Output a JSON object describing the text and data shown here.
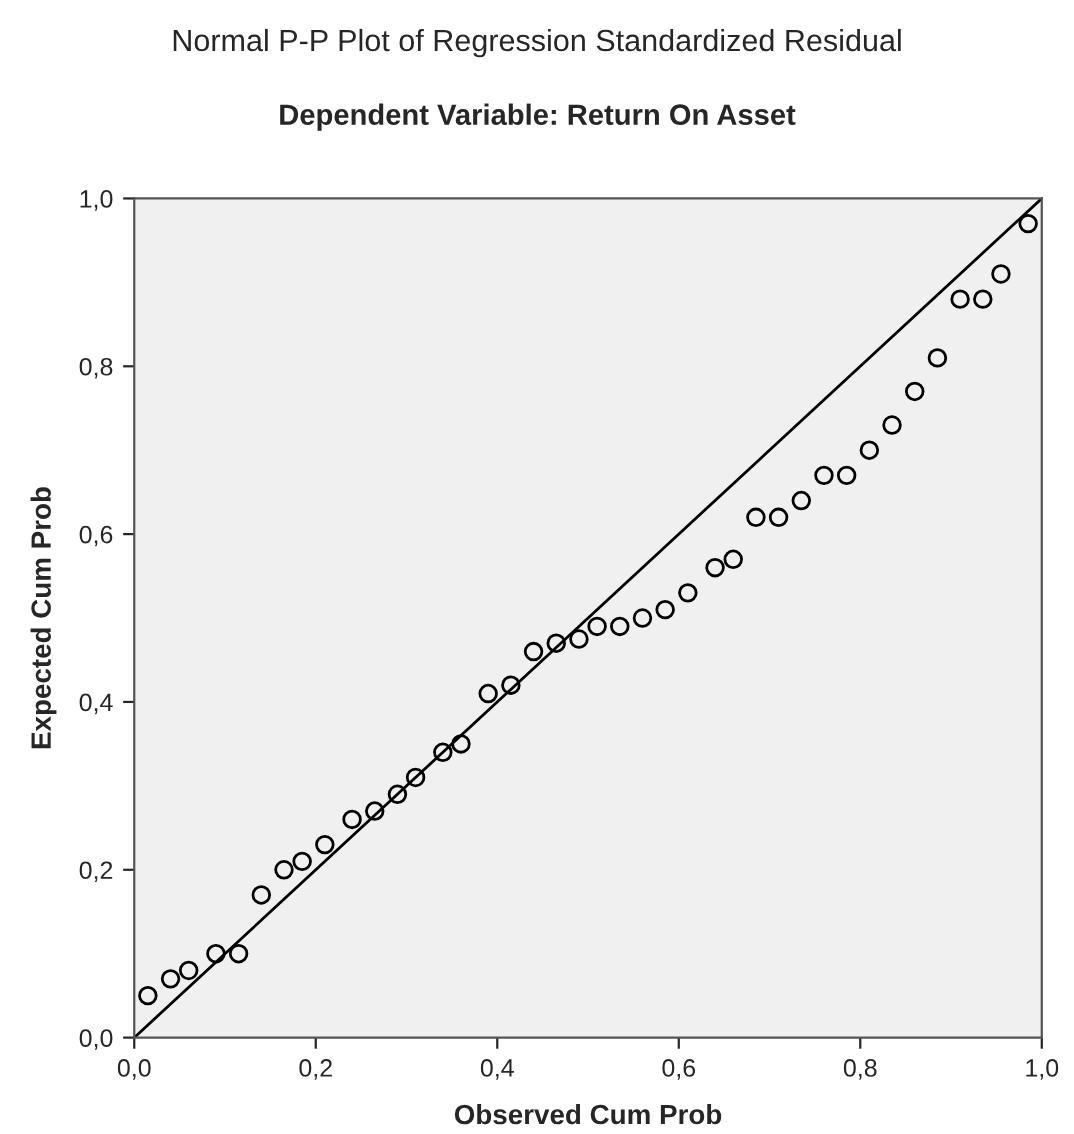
{
  "chart_data": {
    "type": "scatter",
    "title": "Normal P-P Plot of Regression Standardized Residual",
    "subtitle": "Dependent Variable: Return On Asset",
    "xlabel": "Observed Cum Prob",
    "ylabel": "Expected Cum Prob",
    "xlim": [
      0,
      1
    ],
    "ylim": [
      0,
      1
    ],
    "xticks": [
      {
        "value": 0,
        "label": "0,0"
      },
      {
        "value": 0.2,
        "label": "0,2"
      },
      {
        "value": 0.4,
        "label": "0,4"
      },
      {
        "value": 0.6,
        "label": "0,6"
      },
      {
        "value": 0.8,
        "label": "0,8"
      },
      {
        "value": 1,
        "label": "1,0"
      }
    ],
    "yticks": [
      {
        "value": 0,
        "label": "0,0"
      },
      {
        "value": 0.2,
        "label": "0,2"
      },
      {
        "value": 0.4,
        "label": "0,4"
      },
      {
        "value": 0.6,
        "label": "0,6"
      },
      {
        "value": 0.8,
        "label": "0,8"
      },
      {
        "value": 1,
        "label": "1,0"
      }
    ],
    "grid": false,
    "series": [
      {
        "marker": "circle",
        "color": "#000000",
        "x": [
          0.015,
          0.04,
          0.06,
          0.09,
          0.115,
          0.14,
          0.165,
          0.185,
          0.21,
          0.24,
          0.265,
          0.29,
          0.31,
          0.34,
          0.36,
          0.39,
          0.415,
          0.44,
          0.465,
          0.49,
          0.51,
          0.535,
          0.56,
          0.585,
          0.61,
          0.64,
          0.66,
          0.685,
          0.71,
          0.735,
          0.76,
          0.785,
          0.81,
          0.835,
          0.86,
          0.885,
          0.91,
          0.935,
          0.955,
          0.985
        ],
        "values": [
          0.05,
          0.07,
          0.08,
          0.1,
          0.1,
          0.17,
          0.2,
          0.21,
          0.23,
          0.26,
          0.27,
          0.29,
          0.31,
          0.34,
          0.35,
          0.41,
          0.42,
          0.46,
          0.47,
          0.475,
          0.49,
          0.49,
          0.5,
          0.51,
          0.53,
          0.56,
          0.57,
          0.62,
          0.62,
          0.64,
          0.67,
          0.67,
          0.7,
          0.73,
          0.77,
          0.81,
          0.88,
          0.88,
          0.91,
          0.97
        ]
      },
      {
        "type": "line",
        "color": "#000000",
        "x": [
          0,
          1
        ],
        "values": [
          0,
          1
        ]
      }
    ]
  }
}
